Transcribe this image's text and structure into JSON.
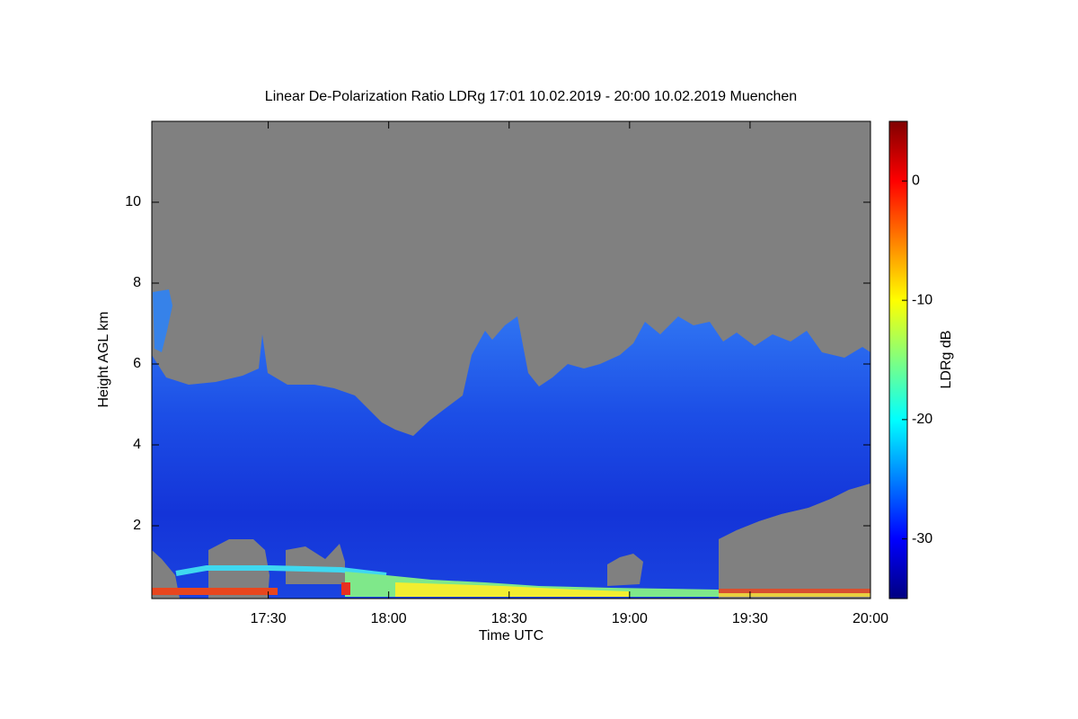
{
  "chart_data": {
    "type": "heatmap",
    "title": "Linear De-Polarization Ratio LDRg   17:01 10.02.2019 - 20:00 10.02.2019 Muenchen",
    "x_label": "Time UTC",
    "y_label": "Height AGL km",
    "colorbar_label": "LDRg dB",
    "colormap": "jet",
    "xlim": [
      17.0167,
      20
    ],
    "xticks": [
      {
        "value": 17.5,
        "label": "17:30"
      },
      {
        "value": 18,
        "label": "18:00"
      },
      {
        "value": 18.5,
        "label": "18:30"
      },
      {
        "value": 19,
        "label": "19:00"
      },
      {
        "value": 19.5,
        "label": "19:30"
      },
      {
        "value": 20,
        "label": "20:00"
      }
    ],
    "ylim": [
      0.2,
      12
    ],
    "yticks": [
      2,
      4,
      6,
      8,
      10
    ],
    "clim": [
      -35,
      5
    ],
    "cticks": [
      -30,
      -20,
      -10,
      0
    ]
  }
}
